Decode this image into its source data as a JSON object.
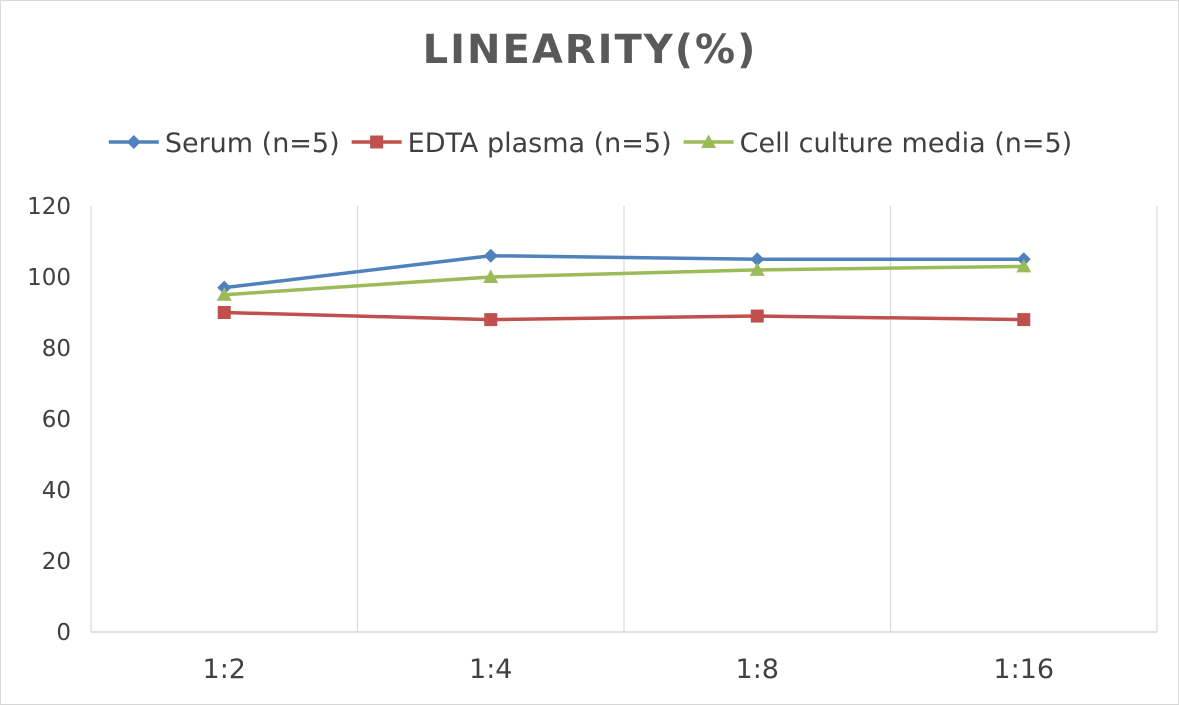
{
  "chart_data": {
    "type": "line",
    "title": "LINEARITY(%)",
    "xlabel": "",
    "ylabel": "",
    "categories": [
      "1:2",
      "1:4",
      "1:8",
      "1:16"
    ],
    "ylim": [
      0,
      120
    ],
    "yticks": [
      0,
      20,
      40,
      60,
      80,
      100,
      120
    ],
    "grid": "vertical",
    "legend_position": "top",
    "series": [
      {
        "name": "Serum (n=5)",
        "values": [
          97,
          106,
          105,
          105
        ],
        "color": "#4f81bd",
        "marker": "diamond"
      },
      {
        "name": "EDTA plasma (n=5)",
        "values": [
          90,
          88,
          89,
          88
        ],
        "color": "#c0504d",
        "marker": "square"
      },
      {
        "name": "Cell culture media (n=5)",
        "values": [
          95,
          100,
          102,
          103
        ],
        "color": "#9bbb59",
        "marker": "triangle"
      }
    ]
  }
}
